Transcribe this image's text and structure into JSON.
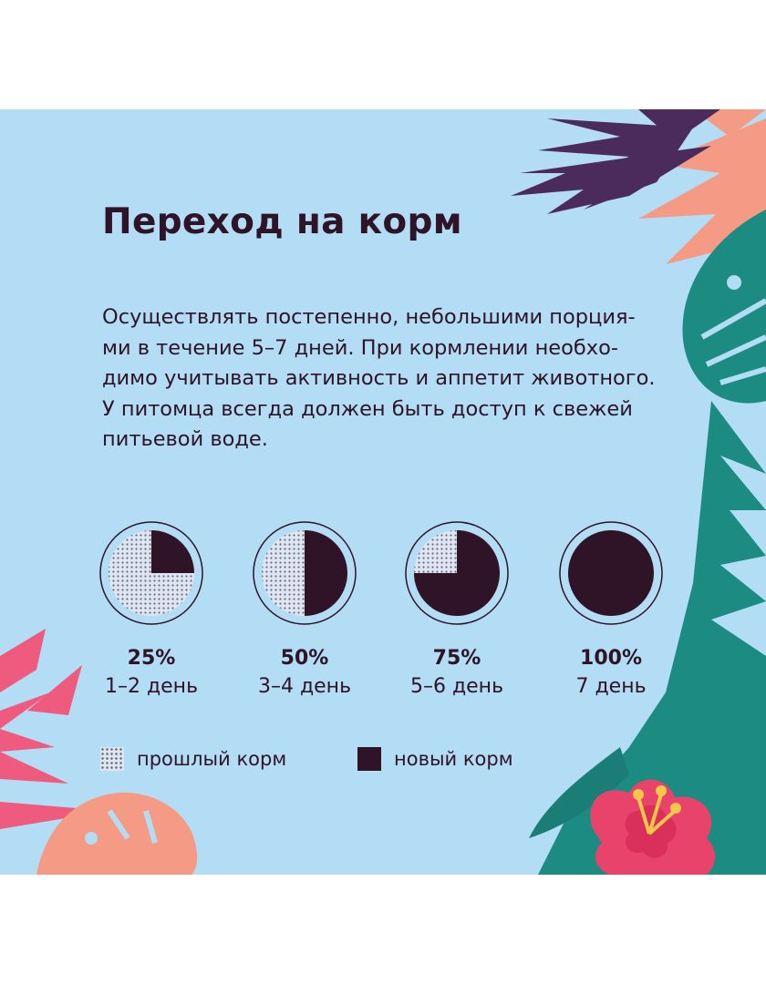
{
  "colors": {
    "background": "#b3dcf5",
    "text": "#2e1426",
    "new_food": "#2e1426",
    "old_food_dots": "#7a6478",
    "leaf_purple": "#4a2b5c",
    "leaf_salmon": "#f59b85",
    "leaf_teal": "#1c8c82",
    "leaf_pink": "#ef5b7f",
    "flower": "#e8436b"
  },
  "title": "Переход на корм",
  "paragraph_lines": [
    "Осуществлять постепенно, небольшими порция-",
    "ми в течение 5–7 дней. При кормлении необхо-",
    "димо учитывать активность и аппетит животного.",
    "У питомца всегда должен быть доступ к свежей",
    "питьевой воде."
  ],
  "stages": [
    {
      "percent": "25%",
      "days": "1–2 день",
      "new_fraction": 0.25
    },
    {
      "percent": "50%",
      "days": "3–4 день",
      "new_fraction": 0.5
    },
    {
      "percent": "75%",
      "days": "5–6 день",
      "new_fraction": 0.75
    },
    {
      "percent": "100%",
      "days": "7 день",
      "new_fraction": 1.0
    }
  ],
  "legend": {
    "old_label": "прошлый корм",
    "new_label": "новый корм"
  }
}
